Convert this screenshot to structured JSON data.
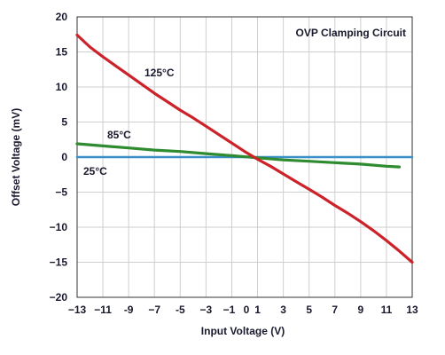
{
  "chart_data": {
    "type": "line",
    "title": "OVP Clamping Circuit",
    "xlabel": "Input Voltage (V)",
    "ylabel": "Offset Voltage (mV)",
    "xlim": [
      -13,
      13
    ],
    "ylim": [
      -20,
      20
    ],
    "x_ticks": [
      "−13",
      "−11",
      "-9",
      "−7",
      "-5",
      "−3",
      "−1",
      "0",
      "1",
      "3",
      "5",
      "7",
      "9",
      "11",
      "13"
    ],
    "x_tick_values": [
      -13,
      -11,
      -9,
      -7,
      -5,
      -3,
      -1,
      0,
      1,
      3,
      5,
      7,
      9,
      11,
      13
    ],
    "y_ticks": [
      "20",
      "15",
      "10",
      "5",
      "0",
      "−5",
      "−10",
      "−15",
      "−20"
    ],
    "y_tick_values": [
      20,
      15,
      10,
      5,
      0,
      -5,
      -10,
      -15,
      -20
    ],
    "grid": true,
    "series": [
      {
        "name": "125°C",
        "color": "#cc2229",
        "x": [
          -13,
          -12,
          -11,
          -10,
          -9,
          -8,
          -7,
          -6,
          -5,
          -4,
          -3,
          -2,
          -1,
          0,
          1,
          2,
          3,
          4,
          5,
          6,
          7,
          8,
          9,
          10,
          11,
          12,
          13
        ],
        "y": [
          17.4,
          15.7,
          14.3,
          13.0,
          11.7,
          10.4,
          9.1,
          7.9,
          6.7,
          5.6,
          4.4,
          3.2,
          2.0,
          0.8,
          -0.3,
          -1.3,
          -2.4,
          -3.5,
          -4.6,
          -5.7,
          -6.9,
          -8.0,
          -9.2,
          -10.5,
          -11.9,
          -13.4,
          -15.0
        ]
      },
      {
        "name": "85°C",
        "color": "#2f8b2f",
        "x": [
          -13,
          -11,
          -9,
          -7,
          -5,
          -3,
          -1,
          1,
          3,
          5,
          7,
          9,
          11,
          12
        ],
        "y": [
          1.9,
          1.6,
          1.3,
          1.0,
          0.8,
          0.5,
          0.2,
          -0.1,
          -0.4,
          -0.6,
          -0.8,
          -1.0,
          -1.3,
          -1.4
        ]
      },
      {
        "name": "25°C",
        "color": "#3a8fc8",
        "x": [
          -13,
          13
        ],
        "y": [
          0.0,
          0.0
        ]
      }
    ]
  }
}
